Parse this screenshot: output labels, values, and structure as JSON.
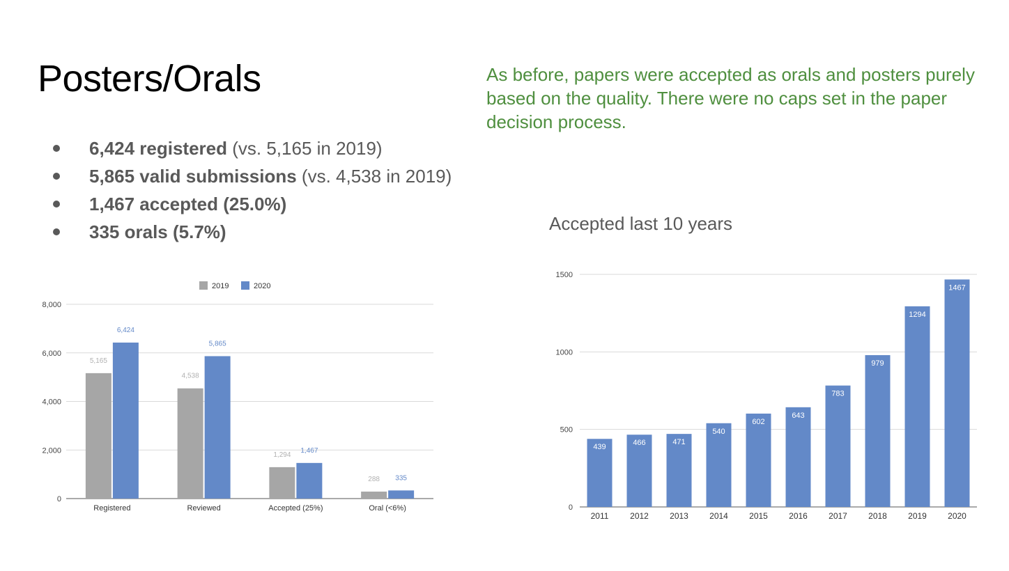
{
  "slide": {
    "title": "Posters/Orals",
    "note": "As before, papers were accepted as orals and posters purely based on the quality. There were no caps set in the paper decision process.",
    "bullets": [
      {
        "bold": "6,424 registered",
        "rest": " (vs. 5,165 in 2019)"
      },
      {
        "bold": "5,865 valid submissions",
        "rest": " (vs. 4,538 in 2019)"
      },
      {
        "bold": "1,467 accepted (25.0%)",
        "rest": ""
      },
      {
        "bold": "335 orals (5.7%)",
        "rest": ""
      }
    ],
    "right_chart_title": "Accepted last 10 years"
  },
  "chart_data": [
    {
      "type": "bar",
      "categories": [
        "Registered",
        "Reviewed",
        "Accepted (25%)",
        "Oral (<6%)"
      ],
      "series": [
        {
          "name": "2019",
          "values": [
            5165,
            4538,
            1294,
            288
          ],
          "labels": [
            "5,165",
            "4,538",
            "1,294",
            "288"
          ],
          "color": "#a6a6a6"
        },
        {
          "name": "2020",
          "values": [
            6424,
            5865,
            1467,
            335
          ],
          "labels": [
            "6,424",
            "5,865",
            "1,467",
            "335"
          ],
          "color": "#6389c8"
        }
      ],
      "ylim": [
        0,
        8000
      ],
      "yticks": [
        0,
        2000,
        4000,
        6000,
        8000
      ],
      "ytick_labels": [
        "0",
        "2,000",
        "4,000",
        "6,000",
        "8,000"
      ],
      "legend": "top-center",
      "grid": true,
      "label_color_2019": "#b0b0b0",
      "label_color_2020": "#6389c8"
    },
    {
      "type": "bar",
      "title": "Accepted last 10 years",
      "categories": [
        "2011",
        "2012",
        "2013",
        "2014",
        "2015",
        "2016",
        "2017",
        "2018",
        "2019",
        "2020"
      ],
      "values": [
        439,
        466,
        471,
        540,
        602,
        643,
        783,
        979,
        1294,
        1467
      ],
      "ylim": [
        0,
        1500
      ],
      "yticks": [
        0,
        500,
        1000,
        1500
      ],
      "ytick_labels": [
        "0",
        "500",
        "1000",
        "1500"
      ],
      "grid": true,
      "color": "#6389c8",
      "label_color": "#ffffff"
    }
  ]
}
